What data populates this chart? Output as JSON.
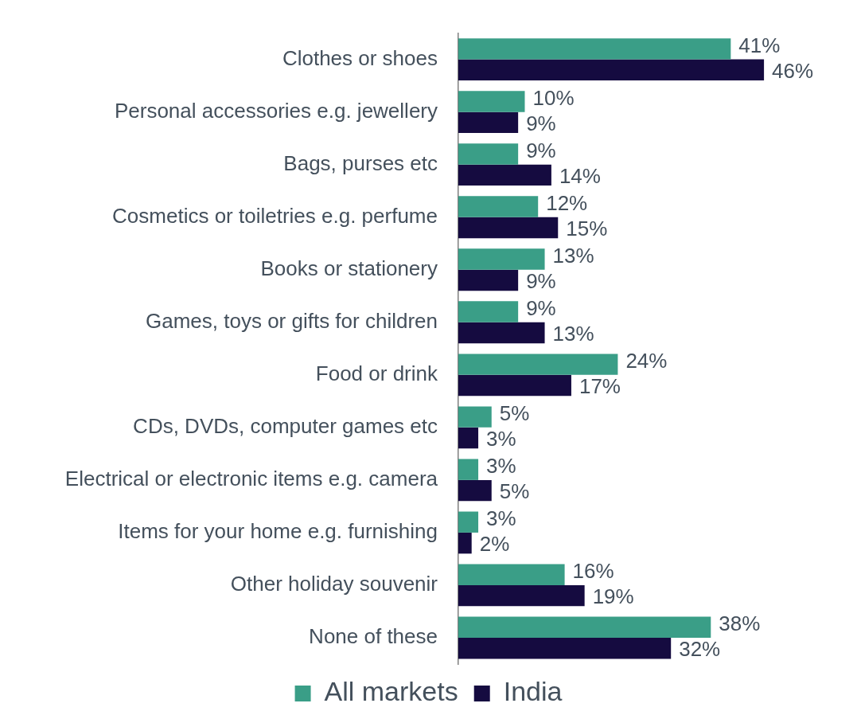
{
  "chart_data": {
    "type": "bar",
    "orientation": "horizontal",
    "categories": [
      "Clothes or shoes",
      "Personal accessories e.g. jewellery",
      "Bags, purses etc",
      "Cosmetics or toiletries e.g. perfume",
      "Books or stationery",
      "Games, toys or gifts for children",
      "Food or drink",
      "CDs, DVDs, computer games etc",
      "Electrical or electronic items e.g. camera",
      "Items for your home e.g. furnishing",
      "Other holiday souvenir",
      "None of these"
    ],
    "series": [
      {
        "name": "All markets",
        "color": "#3a9e87",
        "values": [
          41,
          10,
          9,
          12,
          13,
          9,
          24,
          5,
          3,
          3,
          16,
          38
        ],
        "value_labels": [
          "41%",
          "10%",
          "9%",
          "12%",
          "13%",
          "9%",
          "24%",
          "5%",
          "3%",
          "3%",
          "16%",
          "38%"
        ]
      },
      {
        "name": "India",
        "color": "#150b40",
        "values": [
          46,
          9,
          14,
          15,
          9,
          13,
          17,
          3,
          5,
          2,
          19,
          32
        ],
        "value_labels": [
          "46%",
          "9%",
          "14%",
          "15%",
          "9%",
          "13%",
          "17%",
          "3%",
          "5%",
          "2%",
          "19%",
          "32%"
        ]
      }
    ],
    "legend": "bottom",
    "grid": false,
    "tick_labels": "y"
  }
}
